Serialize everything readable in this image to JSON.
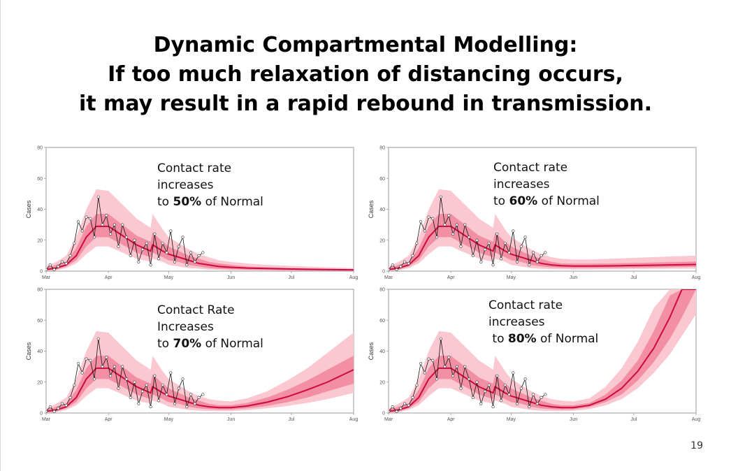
{
  "title": {
    "line1": "Dynamic Compartmental Modelling:",
    "line2": "If too much relaxation of distancing occurs,",
    "line3": "it may result in a rapid rebound in transmission."
  },
  "page_number": "19",
  "colors": {
    "outer_band": "#fbc8d2",
    "inner_band": "#f28fa5",
    "median": "#cc0a3e",
    "observed": "#111111"
  },
  "chart_data": [
    {
      "type": "line",
      "ylabel": "Cases",
      "ylim": [
        0,
        80
      ],
      "yticks": [
        "0",
        "20",
        "40",
        "60",
        "80"
      ],
      "xlim": [
        0,
        153
      ],
      "xticks": [
        {
          "label": "Mar",
          "day": 0
        },
        {
          "label": "Apr",
          "day": 31
        },
        {
          "label": "May",
          "day": 61
        },
        {
          "label": "Jun",
          "day": 92
        },
        {
          "label": "Jul",
          "day": 122
        },
        {
          "label": "Aug",
          "day": 153
        }
      ],
      "annotation": {
        "line1": "Contact rate",
        "line2": "increases",
        "pre": "to ",
        "pct": "50%",
        "post": " of Normal"
      },
      "observed": {
        "x": [
          0,
          2,
          4,
          6,
          8,
          10,
          12,
          14,
          16,
          18,
          20,
          22,
          24,
          26,
          28,
          30,
          32,
          34,
          36,
          38,
          40,
          42,
          44,
          46,
          48,
          50,
          52,
          54,
          56,
          58,
          60,
          62,
          64,
          66,
          68,
          70,
          72,
          74,
          76,
          78
        ],
        "y": [
          1,
          4,
          1,
          3,
          6,
          5,
          10,
          18,
          32,
          26,
          35,
          34,
          22,
          48,
          30,
          36,
          24,
          30,
          16,
          30,
          22,
          10,
          20,
          6,
          14,
          18,
          4,
          24,
          8,
          18,
          12,
          26,
          6,
          16,
          22,
          4,
          12,
          6,
          10,
          12
        ]
      },
      "median": {
        "x": [
          0,
          5,
          10,
          15,
          20,
          25,
          31,
          38,
          45,
          52,
          53,
          58,
          61,
          66,
          71,
          76,
          81,
          86,
          92,
          100,
          110,
          120,
          130,
          140,
          153
        ],
        "y": [
          1,
          2,
          4,
          10,
          22,
          29,
          29,
          23,
          17,
          13,
          17,
          13,
          11,
          9,
          7,
          5,
          4,
          3,
          2.5,
          2,
          1.7,
          1.4,
          1.2,
          1.0,
          0.8
        ]
      },
      "inner_band": {
        "lo": [
          0.5,
          1,
          3,
          7,
          16,
          22,
          22,
          17,
          12,
          9,
          12,
          9,
          7,
          6,
          4,
          3,
          2,
          1.5,
          1.2,
          1,
          0.8,
          0.6,
          0.5,
          0.4,
          0.3
        ],
        "hi": [
          2,
          4,
          6,
          15,
          29,
          37,
          37,
          30,
          23,
          19,
          25,
          19,
          16,
          13,
          10,
          8,
          6,
          5,
          4,
          3,
          2.5,
          2.1,
          1.8,
          1.6,
          1.4
        ]
      },
      "outer_band": {
        "lo": [
          0,
          0.5,
          2,
          5,
          11,
          16,
          16,
          12,
          8,
          6,
          8,
          6,
          4,
          3,
          2,
          1.5,
          1,
          0.8,
          0.6,
          0.5,
          0.4,
          0.3,
          0.2,
          0.2,
          0.1
        ],
        "hi": [
          3,
          6,
          10,
          22,
          40,
          53,
          52,
          43,
          34,
          28,
          37,
          27,
          22,
          18,
          14,
          11,
          9,
          7,
          6,
          5,
          4,
          3.5,
          3,
          2.5,
          2
        ]
      }
    },
    {
      "type": "line",
      "ylabel": "Cases",
      "ylim": [
        0,
        80
      ],
      "yticks": [
        "0",
        "20",
        "40",
        "60",
        "80"
      ],
      "xlim": [
        0,
        153
      ],
      "xticks": [
        {
          "label": "Mar",
          "day": 0
        },
        {
          "label": "Apr",
          "day": 31
        },
        {
          "label": "May",
          "day": 61
        },
        {
          "label": "Jun",
          "day": 92
        },
        {
          "label": "Jul",
          "day": 122
        },
        {
          "label": "Aug",
          "day": 153
        }
      ],
      "annotation": {
        "line1": "Contact rate",
        "line2": "increases",
        "pre": "to ",
        "pct": "60%",
        "post": " of Normal"
      },
      "observed": {
        "x": [
          0,
          2,
          4,
          6,
          8,
          10,
          12,
          14,
          16,
          18,
          20,
          22,
          24,
          26,
          28,
          30,
          32,
          34,
          36,
          38,
          40,
          42,
          44,
          46,
          48,
          50,
          52,
          54,
          56,
          58,
          60,
          62,
          64,
          66,
          68,
          70,
          72,
          74,
          76,
          78
        ],
        "y": [
          1,
          4,
          1,
          3,
          6,
          5,
          10,
          18,
          32,
          26,
          35,
          34,
          22,
          48,
          30,
          36,
          24,
          30,
          16,
          30,
          22,
          10,
          20,
          6,
          14,
          18,
          4,
          24,
          8,
          18,
          12,
          26,
          6,
          16,
          22,
          4,
          12,
          6,
          10,
          12
        ]
      },
      "median": {
        "x": [
          0,
          5,
          10,
          15,
          20,
          25,
          31,
          38,
          45,
          52,
          53,
          58,
          61,
          66,
          71,
          76,
          81,
          86,
          92,
          100,
          110,
          120,
          130,
          140,
          153
        ],
        "y": [
          1,
          2,
          4,
          10,
          22,
          29,
          29,
          23,
          17,
          13,
          17,
          13,
          11,
          9,
          7,
          5,
          4,
          3.5,
          3.3,
          3.3,
          3.4,
          3.6,
          3.8,
          4.0,
          4.3
        ]
      },
      "inner_band": {
        "lo": [
          0.5,
          1,
          3,
          7,
          16,
          22,
          22,
          17,
          12,
          9,
          12,
          9,
          7,
          6,
          4,
          3,
          2.5,
          2.2,
          2,
          2,
          2.1,
          2.2,
          2.4,
          2.6,
          2.8
        ],
        "hi": [
          2,
          4,
          6,
          15,
          29,
          37,
          37,
          30,
          23,
          19,
          25,
          19,
          16,
          13,
          10,
          8,
          6,
          5,
          4.8,
          4.8,
          5,
          5.2,
          5.5,
          5.8,
          6.2
        ]
      },
      "outer_band": {
        "lo": [
          0,
          0.5,
          2,
          5,
          11,
          16,
          16,
          12,
          8,
          6,
          8,
          6,
          4,
          3,
          2,
          1.5,
          1.3,
          1.2,
          1.1,
          1.1,
          1.2,
          1.3,
          1.4,
          1.5,
          1.6
        ],
        "hi": [
          3,
          6,
          10,
          22,
          40,
          53,
          52,
          43,
          34,
          28,
          37,
          27,
          22,
          18,
          14,
          11,
          9,
          8,
          7.5,
          7.5,
          8,
          8.5,
          9,
          9.5,
          10
        ]
      }
    },
    {
      "type": "line",
      "ylabel": "Cases",
      "ylim": [
        0,
        80
      ],
      "yticks": [
        "0",
        "20",
        "40",
        "60",
        "80"
      ],
      "xlim": [
        0,
        153
      ],
      "xticks": [
        {
          "label": "Mar",
          "day": 0
        },
        {
          "label": "Apr",
          "day": 31
        },
        {
          "label": "May",
          "day": 61
        },
        {
          "label": "Jun",
          "day": 92
        },
        {
          "label": "Jul",
          "day": 122
        },
        {
          "label": "Aug",
          "day": 153
        }
      ],
      "annotation": {
        "line1": "Contact Rate",
        "line2": "Increases",
        "pre": "to ",
        "pct": "70%",
        "post": " of Normal"
      },
      "observed": {
        "x": [
          0,
          2,
          4,
          6,
          8,
          10,
          12,
          14,
          16,
          18,
          20,
          22,
          24,
          26,
          28,
          30,
          32,
          34,
          36,
          38,
          40,
          42,
          44,
          46,
          48,
          50,
          52,
          54,
          56,
          58,
          60,
          62,
          64,
          66,
          68,
          70,
          72,
          74,
          76,
          78
        ],
        "y": [
          1,
          4,
          1,
          3,
          6,
          5,
          10,
          18,
          32,
          26,
          35,
          34,
          22,
          48,
          30,
          36,
          24,
          30,
          16,
          30,
          22,
          10,
          20,
          6,
          14,
          18,
          4,
          24,
          8,
          18,
          12,
          26,
          6,
          16,
          22,
          4,
          12,
          6,
          10,
          12
        ]
      },
      "median": {
        "x": [
          0,
          5,
          10,
          15,
          20,
          25,
          31,
          38,
          45,
          52,
          53,
          58,
          61,
          66,
          71,
          76,
          81,
          86,
          92,
          100,
          110,
          120,
          130,
          140,
          153
        ],
        "y": [
          1,
          2,
          4,
          10,
          22,
          29,
          29,
          23,
          17,
          13,
          17,
          13,
          11,
          9,
          7,
          5,
          4,
          3.5,
          3.5,
          4.5,
          7,
          10.5,
          15,
          20,
          28
        ]
      },
      "inner_band": {
        "lo": [
          0.5,
          1,
          3,
          7,
          16,
          22,
          22,
          17,
          12,
          9,
          12,
          9,
          7,
          6,
          4,
          3,
          2.5,
          2.2,
          2.2,
          3,
          4.5,
          7,
          10,
          14,
          19
        ],
        "hi": [
          2,
          4,
          6,
          15,
          29,
          37,
          37,
          30,
          23,
          19,
          25,
          19,
          16,
          13,
          10,
          8,
          6,
          5,
          5,
          6.5,
          10,
          15,
          21,
          28,
          37
        ]
      },
      "outer_band": {
        "lo": [
          0,
          0.5,
          2,
          5,
          11,
          16,
          16,
          12,
          8,
          6,
          8,
          6,
          4,
          3,
          2,
          1.5,
          1.3,
          1.2,
          1.2,
          1.8,
          3,
          4.5,
          6.5,
          9,
          13
        ],
        "hi": [
          3,
          6,
          10,
          22,
          40,
          53,
          52,
          43,
          34,
          28,
          37,
          27,
          22,
          18,
          14,
          11,
          9,
          8,
          7.5,
          9.5,
          14,
          21,
          29,
          39,
          52
        ]
      }
    },
    {
      "type": "line",
      "ylabel": "Cases",
      "ylim": [
        0,
        80
      ],
      "yticks": [
        "0",
        "20",
        "40",
        "60",
        "80"
      ],
      "xlim": [
        0,
        153
      ],
      "xticks": [
        {
          "label": "Mar",
          "day": 0
        },
        {
          "label": "Apr",
          "day": 31
        },
        {
          "label": "May",
          "day": 61
        },
        {
          "label": "Jun",
          "day": 92
        },
        {
          "label": "Jul",
          "day": 122
        },
        {
          "label": "Aug",
          "day": 153
        }
      ],
      "annotation": {
        "line1": "Contact rate",
        "line2": "increases",
        "pre": " to ",
        "pct": "80%",
        "post": " of Normal"
      },
      "observed": {
        "x": [
          0,
          2,
          4,
          6,
          8,
          10,
          12,
          14,
          16,
          18,
          20,
          22,
          24,
          26,
          28,
          30,
          32,
          34,
          36,
          38,
          40,
          42,
          44,
          46,
          48,
          50,
          52,
          54,
          56,
          58,
          60,
          62,
          64,
          66,
          68,
          70,
          72,
          74,
          76,
          78
        ],
        "y": [
          1,
          4,
          1,
          3,
          6,
          5,
          10,
          18,
          32,
          26,
          35,
          34,
          22,
          48,
          30,
          36,
          24,
          30,
          16,
          30,
          22,
          10,
          20,
          6,
          14,
          18,
          4,
          24,
          8,
          18,
          12,
          26,
          6,
          16,
          22,
          4,
          12,
          6,
          10,
          12
        ]
      },
      "median": {
        "x": [
          0,
          5,
          10,
          15,
          20,
          25,
          31,
          38,
          45,
          52,
          53,
          58,
          61,
          66,
          71,
          76,
          81,
          86,
          92,
          100,
          108,
          116,
          124,
          132,
          140,
          146,
          153
        ],
        "y": [
          1,
          2,
          4,
          10,
          22,
          29,
          29,
          23,
          17,
          13,
          17,
          13,
          11,
          9,
          7,
          5,
          4,
          3.5,
          3.5,
          5,
          9,
          16,
          27,
          42,
          62,
          80,
          80
        ]
      },
      "inner_band": {
        "lo": [
          0.5,
          1,
          3,
          7,
          16,
          22,
          22,
          17,
          12,
          9,
          12,
          9,
          7,
          6,
          4,
          3,
          2.5,
          2.2,
          2.4,
          3.8,
          7,
          12,
          21,
          33,
          48,
          62,
          80
        ],
        "hi": [
          2,
          4,
          6,
          15,
          29,
          37,
          37,
          30,
          23,
          19,
          25,
          19,
          16,
          13,
          10,
          8,
          6,
          5,
          5,
          6.5,
          12,
          21,
          34,
          53,
          76,
          80,
          80
        ]
      },
      "outer_band": {
        "lo": [
          0,
          0.5,
          2,
          5,
          11,
          16,
          16,
          12,
          8,
          6,
          8,
          6,
          4,
          3,
          2,
          1.5,
          1.3,
          1.2,
          1.4,
          2.5,
          5,
          9,
          16,
          26,
          38,
          50,
          64
        ],
        "hi": [
          3,
          6,
          10,
          22,
          40,
          53,
          52,
          43,
          34,
          28,
          37,
          27,
          22,
          18,
          14,
          11,
          9,
          8,
          7.5,
          9.5,
          17,
          29,
          46,
          68,
          80,
          80,
          80
        ]
      }
    }
  ]
}
